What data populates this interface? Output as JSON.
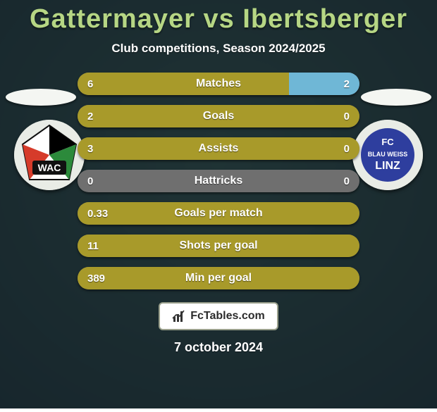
{
  "background": {
    "overlay_color": "#1a2a2f",
    "overlay_opacity": 0.82,
    "base_gradient_from": "#3b5e4a",
    "base_gradient_to": "#0d1820"
  },
  "title": {
    "text": "Gattermayer vs Ibertsberger",
    "color": "#b6d684"
  },
  "subtitle": {
    "text": "Club competitions, Season 2024/2025",
    "color": "#ffffff"
  },
  "text_color": "#ffffff",
  "players": {
    "left": {
      "pill_color": "#f4f6f2",
      "crest": {
        "bg": "#e9ece6",
        "label": "WAC",
        "label_color": "#111111",
        "stripe1": "#000000",
        "stripe2": "#d63b2a",
        "stripe3": "#2c8a3b"
      }
    },
    "right": {
      "pill_color": "#f4f6f2",
      "crest": {
        "bg": "#e9ece6",
        "inner_bg": "#2e3e9e",
        "label1": "FC",
        "label2": "BLAU WEISS",
        "label3": "LINZ",
        "label_color": "#ffffff"
      }
    }
  },
  "chart": {
    "row_bg": "#6f6f6f",
    "left_fill_color": "#a89a2a",
    "right_fill_color": "#6fb7d6",
    "row_radius": 18,
    "rows": [
      {
        "label": "Matches",
        "left": "6",
        "right": "2",
        "left_pct": 75,
        "right_pct": 25
      },
      {
        "label": "Goals",
        "left": "2",
        "right": "0",
        "left_pct": 100,
        "right_pct": 0
      },
      {
        "label": "Assists",
        "left": "3",
        "right": "0",
        "left_pct": 100,
        "right_pct": 0
      },
      {
        "label": "Hattricks",
        "left": "0",
        "right": "0",
        "left_pct": 0,
        "right_pct": 0
      },
      {
        "label": "Goals per match",
        "left": "0.33",
        "right": "",
        "left_pct": 100,
        "right_pct": 0
      },
      {
        "label": "Shots per goal",
        "left": "11",
        "right": "",
        "left_pct": 100,
        "right_pct": 0
      },
      {
        "label": "Min per goal",
        "left": "389",
        "right": "",
        "left_pct": 100,
        "right_pct": 0
      }
    ]
  },
  "footer": {
    "badge_bg": "#ffffff",
    "badge_border": "#9aa08c",
    "badge_text": "FcTables.com",
    "badge_text_color": "#2b2b2b",
    "date": "7 october 2024",
    "date_color": "#ffffff"
  }
}
